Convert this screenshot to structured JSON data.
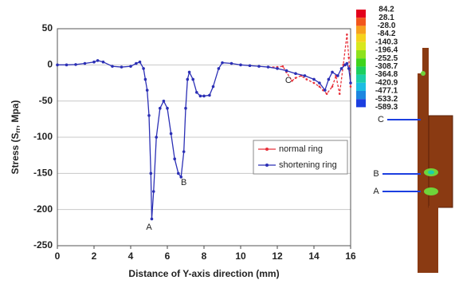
{
  "chart_data": [
    {
      "type": "line",
      "x_label": "Distance of Y-axis direction (mm)",
      "y_label": {
        "prefix": "Stress (S",
        "sub": "rr",
        "suffix": ", Mpa)"
      },
      "xlim": [
        0,
        16
      ],
      "xticks": [
        0,
        2,
        4,
        6,
        8,
        10,
        12,
        14,
        16
      ],
      "ylim": [
        -250,
        50
      ],
      "yticks": [
        -250,
        -200,
        -150,
        -100,
        -50,
        0,
        50
      ],
      "grid": true,
      "legend": "center-right",
      "annotations": [
        "A",
        "B",
        "C"
      ],
      "series": [
        {
          "name": "normal ring",
          "color": "#e8303a",
          "x": [
            11.5,
            12,
            12.3,
            12.5,
            12.8,
            13,
            13.3,
            13.6,
            14,
            14.3,
            14.5,
            14.7,
            15,
            15.2,
            15.4,
            15.6,
            15.8,
            15.9,
            16
          ],
          "values": [
            -3,
            -3,
            -2,
            -10,
            -22,
            -18,
            -15,
            -20,
            -25,
            -30,
            -35,
            -40,
            -30,
            -15,
            -40,
            0,
            42,
            10,
            -30
          ]
        },
        {
          "name": "shortening ring",
          "color": "#2b2fb5",
          "x": [
            0,
            0.5,
            1,
            1.5,
            2,
            2.2,
            2.5,
            3,
            3.5,
            4,
            4.3,
            4.5,
            4.7,
            4.8,
            4.9,
            5.0,
            5.1,
            5.15,
            5.25,
            5.4,
            5.6,
            5.8,
            6.0,
            6.2,
            6.4,
            6.6,
            6.75,
            6.9,
            7.0,
            7.1,
            7.2,
            7.4,
            7.6,
            7.8,
            8.0,
            8.3,
            8.5,
            8.8,
            9,
            9.5,
            10,
            10.5,
            11,
            11.5,
            12,
            12.5,
            13,
            13.5,
            14,
            14.3,
            14.6,
            14.8,
            15,
            15.3,
            15.5,
            15.7,
            15.8,
            15.9,
            16
          ],
          "values": [
            0,
            0,
            0.5,
            2,
            4,
            6,
            4,
            -2,
            -3,
            -2,
            2,
            4,
            -5,
            -20,
            -35,
            -70,
            -150,
            -213,
            -175,
            -100,
            -60,
            -50,
            -60,
            -95,
            -130,
            -150,
            -155,
            -120,
            -60,
            -20,
            -10,
            -20,
            -38,
            -43,
            -43,
            -42,
            -30,
            -5,
            3,
            2,
            0,
            -1,
            -2,
            -3,
            -5,
            -8,
            -12,
            -15,
            -20,
            -25,
            -35,
            -20,
            -10,
            -15,
            -5,
            0,
            2,
            -5,
            -25
          ]
        }
      ]
    },
    {
      "type": "contour",
      "levels": [
        84.2,
        28.1,
        {
          "value": -28,
          "label": "-28.0"
        },
        -84.2,
        -140.3,
        -196.4,
        -252.5,
        -308.7,
        -364.8,
        -420.9,
        -477.1,
        -533.2,
        -589.3
      ],
      "colors": [
        "#e3001b",
        "#f2561c",
        "#f7a01e",
        "#f5d21d",
        "#d8e81d",
        "#8ee21c",
        "#3fd41b",
        "#1ccf5e",
        "#1ccfa8",
        "#1cbde3",
        "#1c86e0",
        "#1c3fe0"
      ],
      "annotations": [
        "C",
        "B",
        "A"
      ]
    }
  ]
}
